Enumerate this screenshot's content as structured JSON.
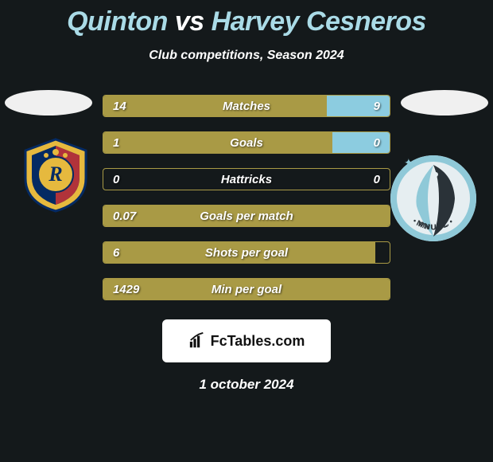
{
  "header": {
    "player1": "Quinton",
    "vs": "vs",
    "player2": "Harvey Cesneros",
    "subtitle": "Club competitions, Season 2024"
  },
  "colors": {
    "bar_left": "#a99a45",
    "bar_right": "#8ccce0",
    "border": "#a99a45",
    "accent_text": "#aadbe7",
    "background": "#14191b"
  },
  "stats": [
    {
      "label": "Matches",
      "left_val": "14",
      "right_val": "9",
      "left_pct": 78,
      "right_pct": 22
    },
    {
      "label": "Goals",
      "left_val": "1",
      "right_val": "0",
      "left_pct": 80,
      "right_pct": 20
    },
    {
      "label": "Hattricks",
      "left_val": "0",
      "right_val": "0",
      "left_pct": 0,
      "right_pct": 0
    },
    {
      "label": "Goals per match",
      "left_val": "0.07",
      "right_val": "",
      "left_pct": 100,
      "right_pct": 0
    },
    {
      "label": "Shots per goal",
      "left_val": "6",
      "right_val": "",
      "left_pct": 95,
      "right_pct": 0
    },
    {
      "label": "Min per goal",
      "left_val": "1429",
      "right_val": "",
      "left_pct": 100,
      "right_pct": 0
    }
  ],
  "attribution": "FcTables.com",
  "date": "1 october 2024",
  "crest_left": {
    "banner_color": "#042a63",
    "gold": "#e6b93e",
    "red": "#b1333a",
    "letter": "R"
  },
  "crest_right": {
    "circle": "#e6eef1",
    "band": "#8fc9d8",
    "dark": "#2a3238",
    "text": "MNUFC"
  }
}
